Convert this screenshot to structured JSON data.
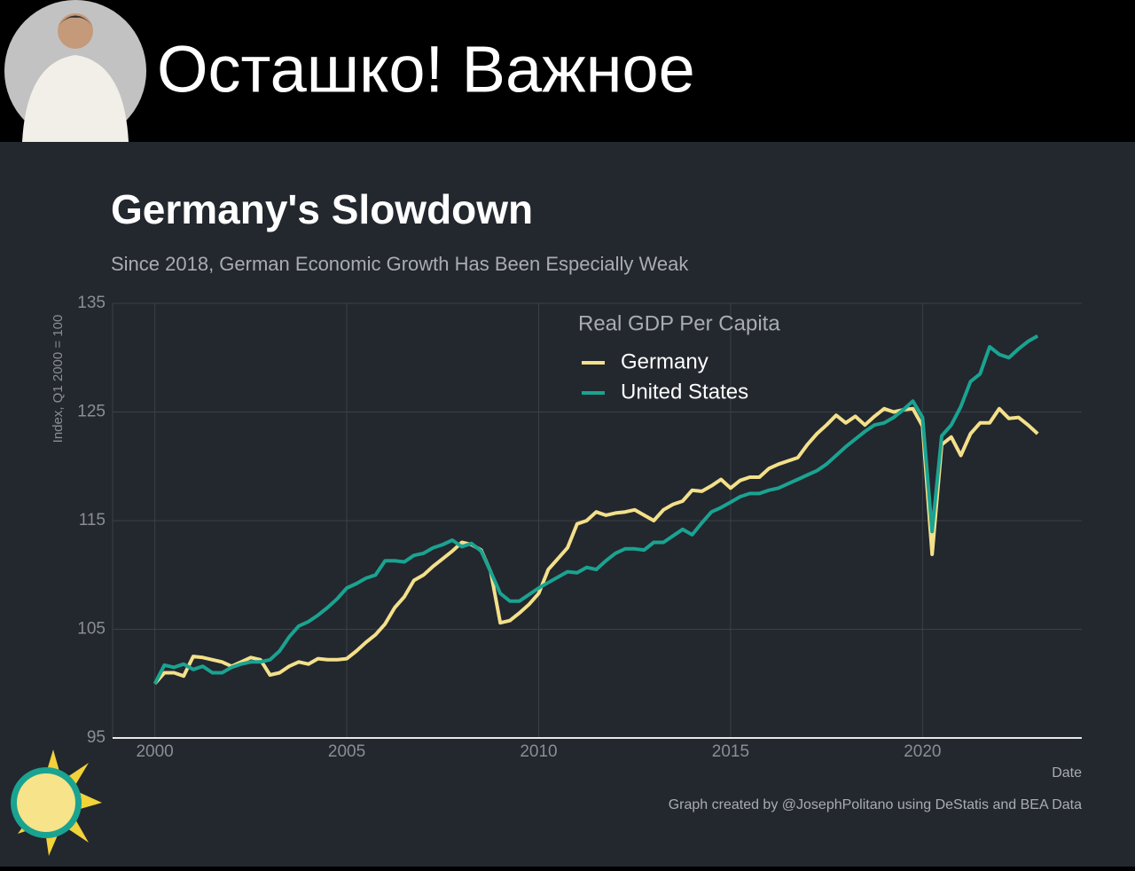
{
  "header": {
    "title": "Осташко! Важное"
  },
  "chart_data": {
    "type": "line",
    "title": "Germany's Slowdown",
    "subtitle": "Since 2018, German Economic Growth Has Been Especially Weak",
    "x_label": "Date",
    "y_label": "Index, Q1 2000 = 100",
    "legend_title": "Real GDP Per Capita",
    "caption": "Graph created by @JosephPolitano using DeStatis and BEA Data",
    "legend": "top",
    "grid": true,
    "xlim": [
      1998.9,
      2024.15
    ],
    "xticks": [
      2000,
      2005,
      2010,
      2015,
      2020
    ],
    "ylim": [
      95,
      135
    ],
    "yticks": [
      95,
      105,
      115,
      125,
      135
    ],
    "x": [
      2000,
      2000.25,
      2000.5,
      2000.75,
      2001,
      2001.25,
      2001.5,
      2001.75,
      2002,
      2002.25,
      2002.5,
      2002.75,
      2003,
      2003.25,
      2003.5,
      2003.75,
      2004,
      2004.25,
      2004.5,
      2004.75,
      2005,
      2005.25,
      2005.5,
      2005.75,
      2006,
      2006.25,
      2006.5,
      2006.75,
      2007,
      2007.25,
      2007.5,
      2007.75,
      2008,
      2008.25,
      2008.5,
      2008.75,
      2009,
      2009.25,
      2009.5,
      2009.75,
      2010,
      2010.25,
      2010.5,
      2010.75,
      2011,
      2011.25,
      2011.5,
      2011.75,
      2012,
      2012.25,
      2012.5,
      2012.75,
      2013,
      2013.25,
      2013.5,
      2013.75,
      2014,
      2014.25,
      2014.5,
      2014.75,
      2015,
      2015.25,
      2015.5,
      2015.75,
      2016,
      2016.25,
      2016.5,
      2016.75,
      2017,
      2017.25,
      2017.5,
      2017.75,
      2018,
      2018.25,
      2018.5,
      2018.75,
      2019,
      2019.25,
      2019.5,
      2019.75,
      2020,
      2020.25,
      2020.5,
      2020.75,
      2021,
      2021.25,
      2021.5,
      2021.75,
      2022,
      2022.25,
      2022.5,
      2022.75,
      2023
    ],
    "series": [
      {
        "name": "Germany",
        "color": "#f3e08a",
        "values": [
          100,
          101,
          101,
          100.7,
          102.5,
          102.4,
          102.2,
          102,
          101.6,
          102,
          102.4,
          102.2,
          100.8,
          101,
          101.6,
          102,
          101.8,
          102.3,
          102.2,
          102.2,
          102.3,
          103,
          103.8,
          104.5,
          105.5,
          107,
          108,
          109.5,
          110,
          110.8,
          111.5,
          112.2,
          113,
          112.8,
          112.3,
          110.3,
          105.6,
          105.8,
          106.5,
          107.3,
          108.3,
          110.5,
          111.5,
          112.5,
          114.7,
          115,
          115.8,
          115.5,
          115.7,
          115.8,
          116,
          115.5,
          115,
          116,
          116.5,
          116.8,
          117.8,
          117.7,
          118.2,
          118.8,
          118,
          118.7,
          119,
          119,
          119.8,
          120.2,
          120.5,
          120.8,
          122,
          123,
          123.8,
          124.7,
          124,
          124.6,
          123.8,
          124.6,
          125.3,
          125,
          125.2,
          125.3,
          123.7,
          111.9,
          122,
          122.7,
          121,
          123,
          124,
          124,
          125.3,
          124.4,
          124.5,
          123.8,
          123
        ]
      },
      {
        "name": "United States",
        "color": "#1aa391",
        "values": [
          100,
          101.7,
          101.5,
          101.8,
          101.3,
          101.6,
          101,
          101,
          101.5,
          101.8,
          102,
          102,
          102.2,
          103,
          104.3,
          105.3,
          105.7,
          106.3,
          107,
          107.8,
          108.8,
          109.2,
          109.7,
          110,
          111.3,
          111.3,
          111.2,
          111.8,
          112,
          112.5,
          112.8,
          113.2,
          112.6,
          112.9,
          112.2,
          110.3,
          108.3,
          107.6,
          107.6,
          108.2,
          108.8,
          109.3,
          109.8,
          110.3,
          110.2,
          110.7,
          110.5,
          111.3,
          112,
          112.4,
          112.4,
          112.3,
          113,
          113,
          113.6,
          114.2,
          113.7,
          114.8,
          115.8,
          116.2,
          116.7,
          117.2,
          117.5,
          117.5,
          117.8,
          118,
          118.4,
          118.8,
          119.2,
          119.6,
          120.2,
          121,
          121.8,
          122.5,
          123.2,
          123.8,
          124,
          124.5,
          125.2,
          126,
          124.5,
          114,
          122.8,
          123.8,
          125.5,
          127.8,
          128.5,
          131,
          130.3,
          130,
          130.8,
          131.5,
          132
        ]
      }
    ]
  }
}
